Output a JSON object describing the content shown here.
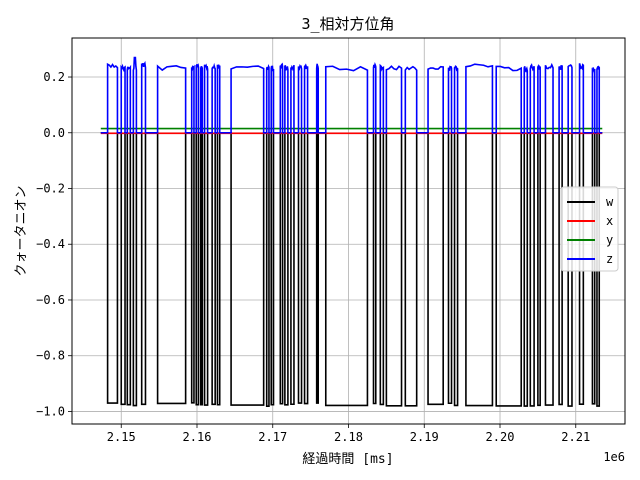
{
  "chart_data": {
    "type": "line",
    "title": "3_相対方位角",
    "xlabel": "経過時間 [ms]",
    "ylabel": "クォータニオン",
    "x_offset_text": "1e6",
    "xlim": [
      2.1435,
      2.2165
    ],
    "ylim": [
      -1.045,
      0.34
    ],
    "x_ticks": [
      2.15,
      2.16,
      2.17,
      2.18,
      2.19,
      2.2,
      2.21
    ],
    "x_tick_labels": [
      "2.15",
      "2.16",
      "2.17",
      "2.18",
      "2.19",
      "2.20",
      "2.21"
    ],
    "y_ticks": [
      0.2,
      0.0,
      -0.2,
      -0.4,
      -0.6,
      -0.8,
      -1.0
    ],
    "y_tick_labels": [
      "0.2",
      "0.0",
      "−0.2",
      "−0.4",
      "−0.6",
      "−0.8",
      "−1.0"
    ],
    "grid": true,
    "legend_position": "center-right",
    "x_range_data": [
      2.1473,
      2.2135
    ],
    "series": [
      {
        "name": "w",
        "color": "#000000",
        "baseline": 0.0,
        "low": -0.975
      },
      {
        "name": "x",
        "color": "#ff0000",
        "baseline": -0.002
      },
      {
        "name": "y",
        "color": "#008000",
        "baseline": 0.015
      },
      {
        "name": "z",
        "color": "#0000ff",
        "baseline": 0.0,
        "high": 0.235
      }
    ],
    "segments": [
      [
        2.1473,
        2.1482,
        0
      ],
      [
        2.1482,
        2.1495,
        1
      ],
      [
        2.1495,
        2.15,
        0
      ],
      [
        2.15,
        2.1505,
        1
      ],
      [
        2.1505,
        2.1508,
        0
      ],
      [
        2.1508,
        2.1512,
        1
      ],
      [
        2.1512,
        2.1516,
        0
      ],
      [
        2.1516,
        2.152,
        1
      ],
      [
        2.152,
        2.1527,
        0
      ],
      [
        2.1527,
        2.1532,
        1
      ],
      [
        2.1532,
        2.1548,
        0
      ],
      [
        2.1548,
        2.1585,
        1
      ],
      [
        2.1585,
        2.1593,
        0
      ],
      [
        2.1593,
        2.1596,
        1
      ],
      [
        2.1596,
        2.1599,
        0
      ],
      [
        2.1599,
        2.1602,
        1
      ],
      [
        2.1602,
        2.1605,
        0
      ],
      [
        2.1605,
        2.1607,
        1
      ],
      [
        2.1607,
        2.161,
        0
      ],
      [
        2.161,
        2.1614,
        1
      ],
      [
        2.1614,
        2.162,
        0
      ],
      [
        2.162,
        2.1624,
        1
      ],
      [
        2.1624,
        2.1627,
        0
      ],
      [
        2.1627,
        2.163,
        1
      ],
      [
        2.163,
        2.1645,
        0
      ],
      [
        2.1645,
        2.1688,
        1
      ],
      [
        2.1688,
        2.1692,
        0
      ],
      [
        2.1692,
        2.1695,
        1
      ],
      [
        2.1695,
        2.1698,
        0
      ],
      [
        2.1698,
        2.1701,
        1
      ],
      [
        2.1701,
        2.171,
        0
      ],
      [
        2.171,
        2.1713,
        1
      ],
      [
        2.1713,
        2.1716,
        0
      ],
      [
        2.1716,
        2.172,
        1
      ],
      [
        2.172,
        2.1724,
        0
      ],
      [
        2.1724,
        2.1728,
        1
      ],
      [
        2.1728,
        2.1734,
        0
      ],
      [
        2.1734,
        2.1738,
        1
      ],
      [
        2.1738,
        2.1742,
        0
      ],
      [
        2.1742,
        2.1746,
        1
      ],
      [
        2.1746,
        2.1758,
        0
      ],
      [
        2.1758,
        2.176,
        1
      ],
      [
        2.176,
        2.177,
        0
      ],
      [
        2.177,
        2.1825,
        1
      ],
      [
        2.1825,
        2.1833,
        0
      ],
      [
        2.1833,
        2.1836,
        1
      ],
      [
        2.1836,
        2.1842,
        0
      ],
      [
        2.1842,
        2.1846,
        1
      ],
      [
        2.1846,
        2.185,
        0
      ],
      [
        2.185,
        2.187,
        1
      ],
      [
        2.187,
        2.1875,
        0
      ],
      [
        2.1875,
        2.189,
        1
      ],
      [
        2.189,
        2.1905,
        0
      ],
      [
        2.1905,
        2.1925,
        1
      ],
      [
        2.1925,
        2.1932,
        0
      ],
      [
        2.1932,
        2.1936,
        1
      ],
      [
        2.1936,
        2.194,
        0
      ],
      [
        2.194,
        2.1944,
        1
      ],
      [
        2.1944,
        2.1955,
        0
      ],
      [
        2.1955,
        2.199,
        1
      ],
      [
        2.199,
        2.1995,
        0
      ],
      [
        2.1995,
        2.2028,
        1
      ],
      [
        2.2028,
        2.2032,
        0
      ],
      [
        2.2032,
        2.2036,
        1
      ],
      [
        2.2036,
        2.204,
        0
      ],
      [
        2.204,
        2.2045,
        1
      ],
      [
        2.2045,
        2.205,
        0
      ],
      [
        2.205,
        2.2053,
        1
      ],
      [
        2.2053,
        2.206,
        0
      ],
      [
        2.206,
        2.207,
        1
      ],
      [
        2.207,
        2.2078,
        0
      ],
      [
        2.2078,
        2.2082,
        1
      ],
      [
        2.2082,
        2.209,
        0
      ],
      [
        2.209,
        2.2095,
        1
      ],
      [
        2.2095,
        2.2105,
        0
      ],
      [
        2.2105,
        2.211,
        1
      ],
      [
        2.211,
        2.2122,
        0
      ],
      [
        2.2122,
        2.2125,
        1
      ],
      [
        2.2125,
        2.2128,
        0
      ],
      [
        2.2128,
        2.2131,
        1
      ],
      [
        2.2131,
        2.2135,
        0
      ]
    ]
  }
}
